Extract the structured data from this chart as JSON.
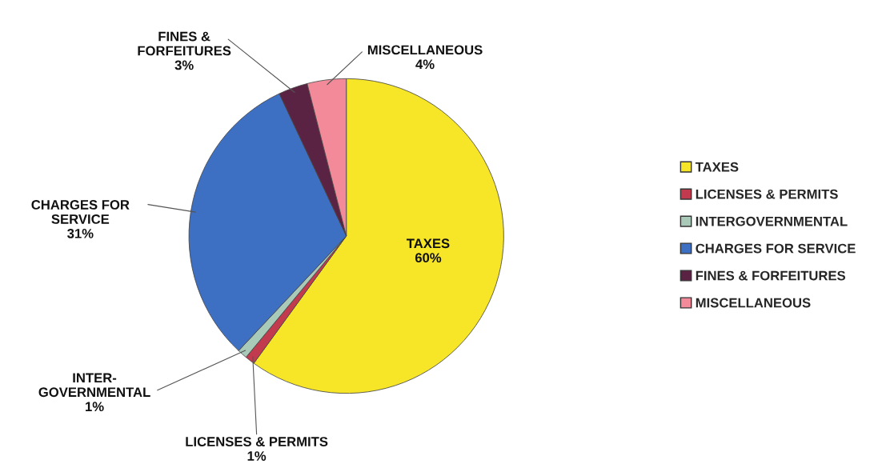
{
  "chart_data": {
    "type": "pie",
    "categories": [
      "TAXES",
      "LICENSES & PERMITS",
      "INTERGOVERNMENTAL",
      "CHARGES FOR SERVICE",
      "FINES & FORFEITURES",
      "MISCELLANEOUS"
    ],
    "values": [
      60,
      1,
      1,
      31,
      3,
      4
    ],
    "colors": [
      "#f7e628",
      "#c23a4e",
      "#a9c9b9",
      "#3d6fc2",
      "#5b2343",
      "#f28a9a"
    ],
    "value_labels": [
      "TAXES\n60%",
      "LICENSES & PERMITS\n1%",
      "INTER-\nGOVERNMENTAL\n1%",
      "CHARGES FOR\nSERVICE\n31%",
      "FINES &\nFORFEITURES\n3%",
      "MISCELLANEOUS\n4%"
    ],
    "legend": "right"
  }
}
